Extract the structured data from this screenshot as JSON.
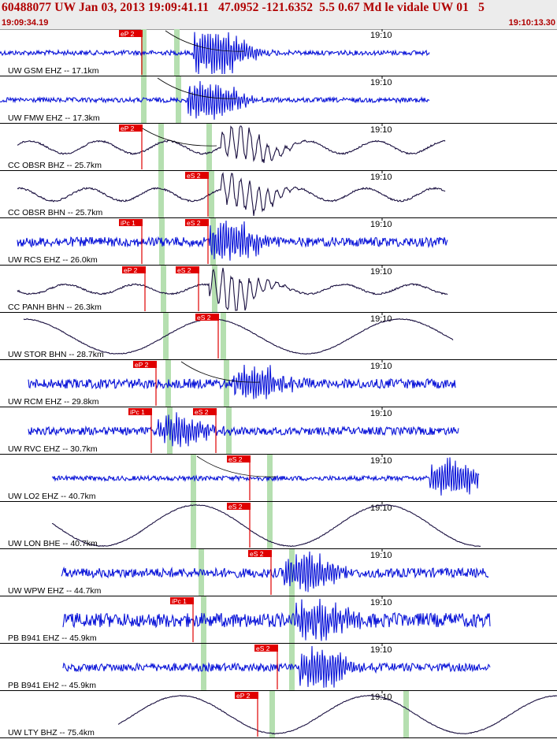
{
  "header": {
    "title": "60488077 UW Jan 03, 2013 19:09:41.11   47.0952 -121.6352  5.5 0.67 Md le vidale UW 01   5",
    "start_time": "19:09:34.19",
    "end_time": "19:10:13.30"
  },
  "colors": {
    "header_text": "#b00000",
    "trace_ehz": "#0a14d8",
    "trace_bh": "#1a1040",
    "pick_box": "#e00000",
    "model_band": "#b5dfb0",
    "theory_curve": "#000000"
  },
  "time_tick_label": "19:10",
  "traces": [
    {
      "label": "UW GSM EHZ -- 17.1km",
      "kind": "hf",
      "color": "blue",
      "t0": 0,
      "t1": 545,
      "amp": 3,
      "burst_x": 270,
      "burst_amp": 30,
      "green": [
        182,
        224
      ],
      "picks": [
        {
          "text": "eP 2",
          "x": 178
        }
      ],
      "curve_x": 250
    },
    {
      "label": "UW FMW EHZ -- 17.3km",
      "kind": "hf",
      "color": "blue",
      "t0": 0,
      "t1": 545,
      "amp": 3,
      "burst_x": 262,
      "burst_amp": 24,
      "green": [
        182,
        226
      ],
      "picks": [],
      "curve_x": 240
    },
    {
      "label": "CC OBSR BHZ -- 25.7km",
      "kind": "lf",
      "color": "dark",
      "t0": 22,
      "t1": 565,
      "amp": 8,
      "burst_x": 305,
      "burst_amp": 22,
      "green": [
        204,
        265
      ],
      "picks": [
        {
          "text": "eP 2",
          "x": 178
        }
      ],
      "curve_x": 215
    },
    {
      "label": "CC OBSR BHN -- 25.7km",
      "kind": "lf",
      "color": "dark",
      "t0": 22,
      "t1": 565,
      "amp": 8,
      "burst_x": 305,
      "burst_amp": 22,
      "green": [
        204,
        268
      ],
      "picks": [
        {
          "text": "eS 2",
          "x": 262
        }
      ],
      "curve_x": 0
    },
    {
      "label": "UW RCS EHZ -- 26.0km",
      "kind": "hf",
      "color": "blue",
      "t0": 22,
      "t1": 568,
      "amp": 6,
      "burst_x": 290,
      "burst_amp": 24,
      "green": [
        205,
        270
      ],
      "picks": [
        {
          "text": "iPc 1",
          "x": 178
        },
        {
          "text": "eS 2",
          "x": 262
        }
      ],
      "curve_x": 0
    },
    {
      "label": "CC PANH BHN -- 26.3km",
      "kind": "lf",
      "color": "dark",
      "t0": 22,
      "t1": 568,
      "amp": 6,
      "burst_x": 290,
      "burst_amp": 26,
      "green": [
        207,
        272
      ],
      "picks": [
        {
          "text": "eP 2",
          "x": 182
        },
        {
          "text": "eS 2",
          "x": 250
        }
      ],
      "curve_x": 0
    },
    {
      "label": "UW STOR BHN -- 28.7km",
      "kind": "vlf",
      "color": "dark",
      "t0": 30,
      "t1": 575,
      "amp": 22,
      "burst_x": 0,
      "burst_amp": 0,
      "green": [
        210,
        283
      ],
      "picks": [
        {
          "text": "eS 2",
          "x": 275
        }
      ],
      "curve_x": 0
    },
    {
      "label": "UW RCM EHZ -- 29.8km",
      "kind": "hf",
      "color": "blue",
      "t0": 36,
      "t1": 578,
      "amp": 6,
      "burst_x": 320,
      "burst_amp": 20,
      "green": [
        213,
        287
      ],
      "picks": [
        {
          "text": "eP 2",
          "x": 196
        }
      ],
      "curve_x": 270
    },
    {
      "label": "UW RVC EHZ -- 30.7km",
      "kind": "hf",
      "color": "blue",
      "t0": 36,
      "t1": 582,
      "amp": 5,
      "burst_x": 225,
      "burst_amp": 18,
      "green": [
        215,
        290
      ],
      "picks": [
        {
          "text": "iPc 1",
          "x": 190
        },
        {
          "text": "eS 2",
          "x": 272
        }
      ],
      "curve_x": 0
    },
    {
      "label": "UW LO2 EHZ -- 40.7km",
      "kind": "hf",
      "color": "blue",
      "t0": 66,
      "t1": 608,
      "amp": 3,
      "burst_x": 570,
      "burst_amp": 24,
      "green": [
        245,
        342
      ],
      "picks": [
        {
          "text": "eS 2",
          "x": 315
        }
      ],
      "curve_x": 290
    },
    {
      "label": "UW LON BHE -- 40.7km",
      "kind": "vlf",
      "color": "dark",
      "t0": 66,
      "t1": 610,
      "amp": 26,
      "burst_x": 0,
      "burst_amp": 0,
      "green": [
        245,
        342
      ],
      "picks": [
        {
          "text": "eS 2",
          "x": 315
        }
      ],
      "curve_x": 0
    },
    {
      "label": "UW WPW EHZ -- 44.7km",
      "kind": "hf",
      "color": "blue",
      "t0": 78,
      "t1": 620,
      "amp": 6,
      "burst_x": 385,
      "burst_amp": 24,
      "green": [
        255,
        370
      ],
      "picks": [
        {
          "text": "eS 2",
          "x": 342
        }
      ],
      "curve_x": 0
    },
    {
      "label": "PB B941 EHZ -- 45.9km",
      "kind": "hf",
      "color": "blue",
      "t0": 80,
      "t1": 622,
      "amp": 9,
      "burst_x": 400,
      "burst_amp": 22,
      "green": [
        258,
        370
      ],
      "picks": [
        {
          "text": "iPc 1",
          "x": 243
        }
      ],
      "curve_x": 0
    },
    {
      "label": "PB B941 EH2 -- 45.9km",
      "kind": "hf",
      "color": "blue",
      "t0": 80,
      "t1": 622,
      "amp": 5,
      "burst_x": 405,
      "burst_amp": 24,
      "green": [
        258,
        370
      ],
      "picks": [
        {
          "text": "eS 2",
          "x": 350
        }
      ],
      "curve_x": 0
    },
    {
      "label": "UW LTY BHZ -- 75.4km",
      "kind": "vlf",
      "color": "dark",
      "t0": 150,
      "t1": 707,
      "amp": 24,
      "burst_x": 0,
      "burst_amp": 0,
      "green": [
        345,
        515
      ],
      "picks": [
        {
          "text": "eP 2",
          "x": 325
        }
      ],
      "curve_x": 0
    }
  ]
}
